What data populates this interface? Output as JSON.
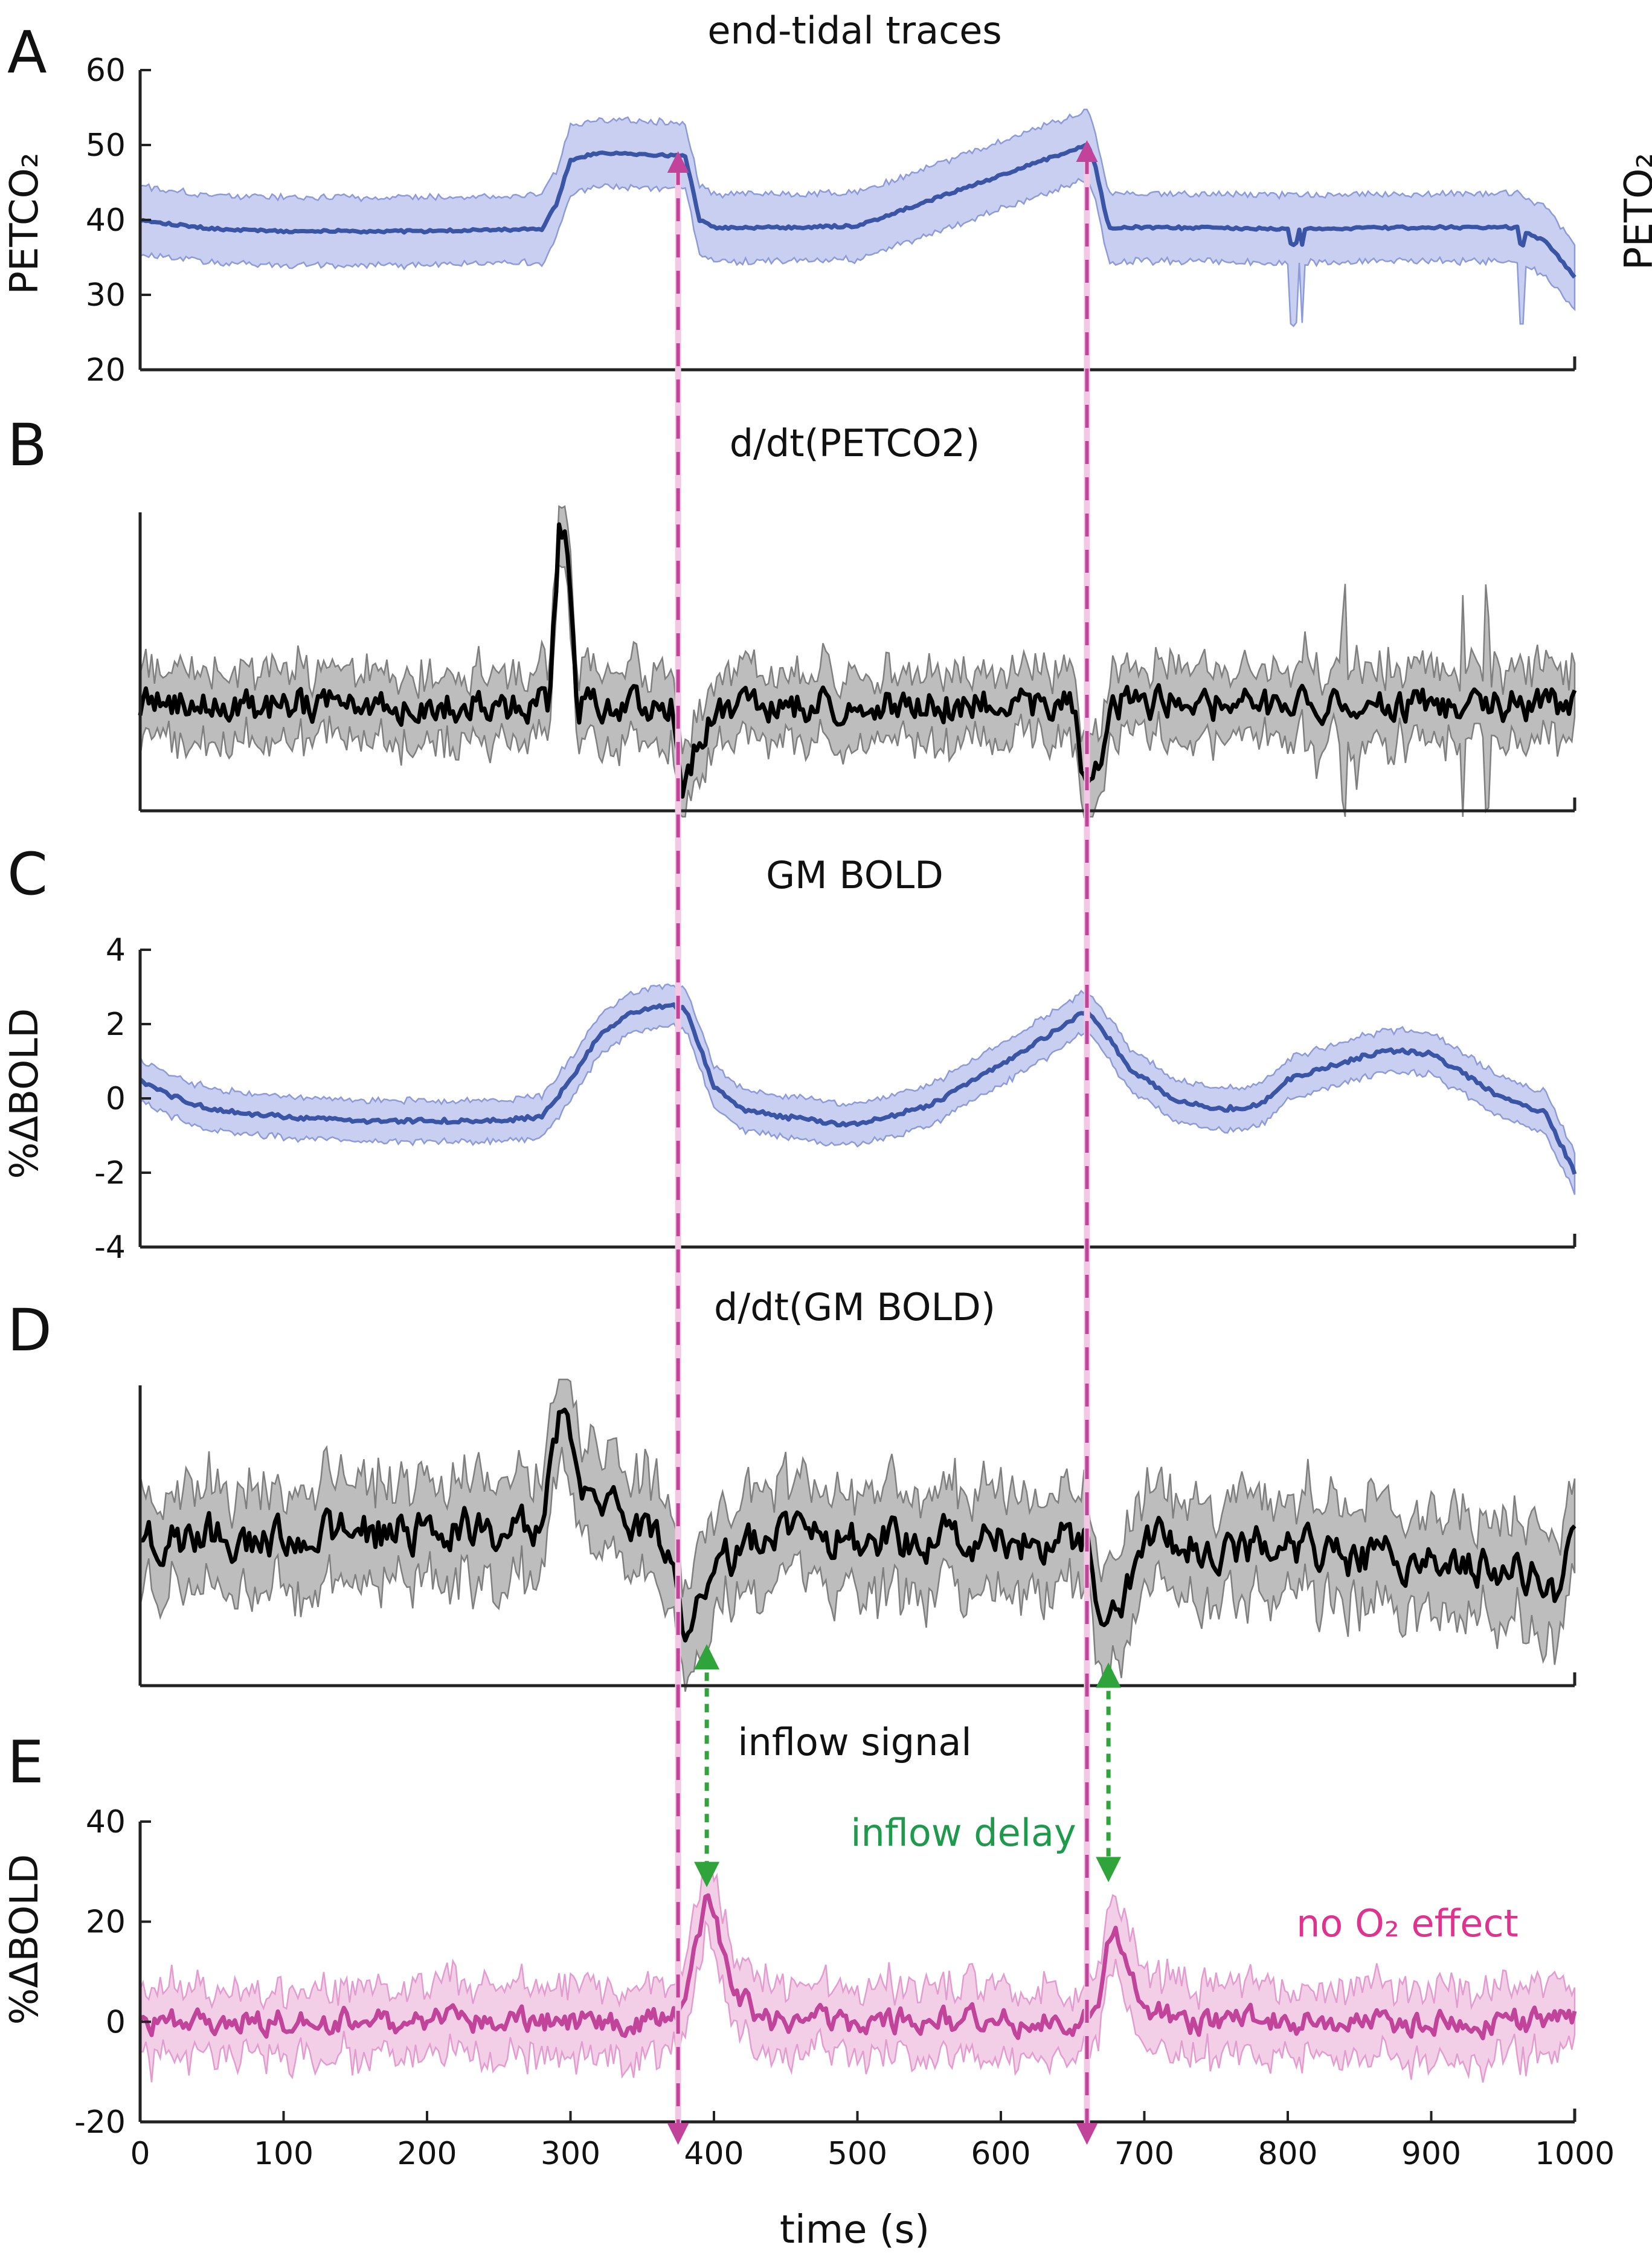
{
  "colors": {
    "blue": "#3a55a6",
    "blue_fill": "#c9cff0",
    "blue_edge": "#8d9bd9",
    "black": "#000000",
    "gray_fill": "#bdbdbd",
    "gray_edge": "#7f7f7f",
    "magenta": "#c2449a",
    "magenta_fill": "#f2cfe7",
    "magenta_edge": "#e39ccf",
    "dashed": "#c2449a",
    "green": "#2fa43b",
    "green_text": "#1f9a4d",
    "pink_text": "#e0338f",
    "axis": "#222222"
  },
  "chart_data": [
    {
      "id": "A",
      "type": "line",
      "panel_letter": "A",
      "title": "end-tidal traces",
      "ylabel": "PETCO₂",
      "ylabel_right": "PETO₂",
      "xlim": [
        0,
        1000
      ],
      "ylim": [
        20,
        60
      ],
      "yticks": [
        20,
        30,
        40,
        50,
        60
      ],
      "band": true,
      "band_halfwidth": 4.5,
      "series": [
        {
          "name": "PETCO2 mean",
          "x": [
            0,
            50,
            100,
            200,
            280,
            290,
            300,
            320,
            380,
            390,
            400,
            450,
            500,
            660,
            665,
            675,
            700,
            800,
            900,
            960,
            980,
            1000
          ],
          "values": [
            40,
            38.8,
            38.5,
            38.5,
            38.8,
            42,
            48,
            49,
            48.5,
            40,
            39,
            39,
            39.2,
            50,
            48,
            39,
            39,
            38.8,
            39,
            39,
            37,
            32.5
          ]
        }
      ]
    },
    {
      "id": "B",
      "type": "line",
      "panel_letter": "B",
      "title": "d/dt(PETCO2)",
      "xlim": [
        0,
        1000
      ],
      "band": true,
      "noisy": true,
      "series": [
        {
          "name": "d/dt PETCO2",
          "x": [
            0,
            285,
            292,
            297,
            305,
            370,
            378,
            385,
            400,
            650,
            660,
            668,
            680,
            1000
          ],
          "values": [
            0,
            0,
            2.6,
            2.8,
            0,
            0,
            -1.2,
            -0.8,
            0,
            0,
            -1.4,
            -0.9,
            0,
            0
          ]
        }
      ]
    },
    {
      "id": "C",
      "type": "line",
      "panel_letter": "C",
      "title": "GM BOLD",
      "ylabel": "%ΔBOLD",
      "xlim": [
        0,
        1000
      ],
      "ylim": [
        -4,
        4
      ],
      "yticks": [
        -4,
        -2,
        0,
        2,
        4
      ],
      "band": true,
      "band_halfwidth": 0.55,
      "series": [
        {
          "name": "GM BOLD mean",
          "x": [
            0,
            20,
            50,
            100,
            150,
            200,
            250,
            280,
            300,
            320,
            340,
            370,
            380,
            390,
            400,
            420,
            450,
            490,
            510,
            550,
            600,
            650,
            660,
            670,
            690,
            720,
            750,
            780,
            800,
            850,
            870,
            900,
            950,
            980,
            1000
          ],
          "values": [
            0.5,
            0.1,
            -0.3,
            -0.5,
            -0.6,
            -0.6,
            -0.6,
            -0.5,
            0.5,
            1.7,
            2.3,
            2.5,
            2.4,
            1.4,
            0.3,
            -0.3,
            -0.5,
            -0.7,
            -0.6,
            -0.2,
            0.9,
            2.1,
            2.4,
            1.9,
            0.8,
            0,
            -0.3,
            -0.2,
            0.5,
            1.1,
            1.3,
            1.2,
            0,
            -0.4,
            -2.0
          ]
        }
      ]
    },
    {
      "id": "D",
      "type": "line",
      "panel_letter": "D",
      "title": "d/dt(GM BOLD)",
      "xlim": [
        0,
        1000
      ],
      "band": true,
      "noisy": true,
      "series": [
        {
          "name": "d/dt GM BOLD",
          "x": [
            0,
            280,
            292,
            297,
            305,
            340,
            370,
            380,
            395,
            420,
            660,
            670,
            680,
            700,
            980,
            990,
            1000
          ],
          "values": [
            0,
            0.15,
            1.5,
            1.6,
            0.5,
            0.2,
            0,
            -1.2,
            -0.9,
            0,
            0,
            -1.5,
            -1.0,
            0,
            -0.5,
            -0.8,
            0
          ]
        }
      ]
    },
    {
      "id": "E",
      "type": "line",
      "panel_letter": "E",
      "title": "inflow signal",
      "ylabel": "%ΔBOLD",
      "xlabel": "time (s)",
      "xlim": [
        0,
        1000
      ],
      "ylim": [
        -20,
        40
      ],
      "yticks": [
        -20,
        0,
        20,
        40
      ],
      "xticks": [
        0,
        100,
        200,
        300,
        400,
        500,
        600,
        700,
        800,
        900,
        1000
      ],
      "band": true,
      "band_halfwidth": 6,
      "noisy": true,
      "series": [
        {
          "name": "inflow mean",
          "x": [
            0,
            370,
            380,
            390,
            395,
            405,
            420,
            440,
            660,
            668,
            675,
            683,
            695,
            720,
            1000
          ],
          "values": [
            0,
            0,
            4,
            18,
            24,
            15,
            4,
            0,
            0,
            5,
            19,
            17,
            5,
            0,
            0
          ]
        }
      ]
    }
  ],
  "annotations": {
    "event_times": [
      375,
      660
    ],
    "inflow_delay_label": "inflow delay",
    "no_o2_label": "no O₂ effect"
  }
}
